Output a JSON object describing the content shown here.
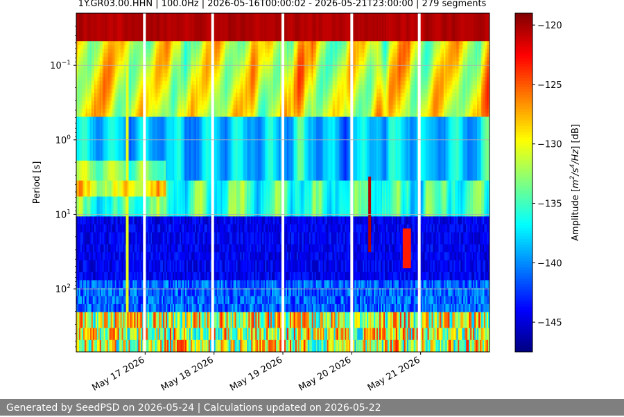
{
  "chart_data": {
    "type": "heatmap",
    "title": "1Y.GR03.00.HHN | 100.0Hz | 2026-05-16T00:00:02 - 2026-05-21T23:00:00 | 279 segments",
    "ylabel": "Period [s]",
    "colorbar_label": "Amplitude [m²/s⁴/Hz] [dB]",
    "y_scale": "log",
    "y_inverted": true,
    "y_range": [
      0.02,
      700
    ],
    "y_ticks": [
      {
        "value": 0.1,
        "base": "10",
        "exp": "−1"
      },
      {
        "value": 1,
        "base": "10",
        "exp": "0"
      },
      {
        "value": 10,
        "base": "10",
        "exp": "1"
      },
      {
        "value": 100,
        "base": "10",
        "exp": "2"
      }
    ],
    "x_ticks": [
      "May 17 2026",
      "May 18 2026",
      "May 19 2026",
      "May 20 2026",
      "May 21 2026"
    ],
    "x_range_days": [
      0,
      6
    ],
    "colorbar": {
      "range": [
        -147.5,
        -119
      ],
      "colormap": "jet",
      "ticks": [
        {
          "value": -120,
          "label": "−120"
        },
        {
          "value": -125,
          "label": "−125"
        },
        {
          "value": -130,
          "label": "−130"
        },
        {
          "value": -135,
          "label": "−135"
        },
        {
          "value": -140,
          "label": "−140"
        },
        {
          "value": -145,
          "label": "−145"
        }
      ]
    },
    "data_gaps_days": [
      0.99,
      1.98,
      3.0,
      4.0,
      4.98
    ],
    "grid": true
  },
  "footer": {
    "text": "Generated by SeedPSD on 2026-05-24 | Calculations updated on 2026-05-22"
  }
}
